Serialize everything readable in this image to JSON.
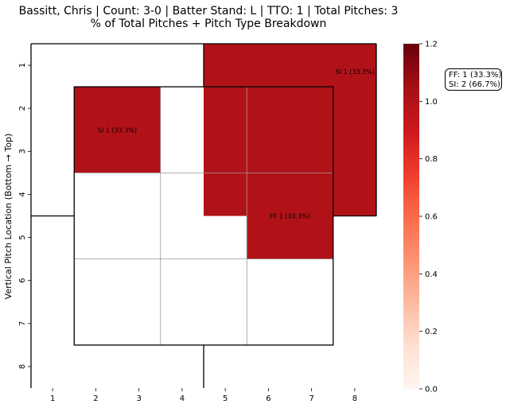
{
  "title": {
    "line1": "Bassitt, Chris | Count: 3-0 | Batter Stand: L | TTO: 1 | Total Pitches: 3",
    "line2": "% of Total Pitches + Pitch Type Breakdown"
  },
  "summary": [
    "FF: 1 (33.3%)",
    "SI: 2 (66.7%)"
  ],
  "chart_data": {
    "type": "heatmap",
    "ylabel": "Vertical Pitch Location (Bottom → Top)",
    "x_ticks": [
      "1",
      "2",
      "3",
      "4",
      "5",
      "6",
      "7",
      "8"
    ],
    "y_ticks": [
      "1",
      "2",
      "3",
      "4",
      "5",
      "6",
      "7",
      "8"
    ],
    "colorbar": {
      "min": 0.0,
      "max": 1.2,
      "ticks": [
        "0.0",
        "0.2",
        "0.4",
        "0.6",
        "0.8",
        "1.0",
        "1.2"
      ],
      "colormap": "Reds"
    },
    "cells": [
      {
        "zone": "top-right outer",
        "x_range": [
          4.5,
          8.5
        ],
        "y_range": [
          0.5,
          4.5
        ],
        "value": 1,
        "label": "SI 1 (33.3%)"
      },
      {
        "zone": "inner top-left",
        "x_range": [
          1.5,
          3.5
        ],
        "y_range": [
          1.5,
          3.5
        ],
        "value": 1,
        "label": "SI 1 (33.3%)"
      },
      {
        "zone": "inner middle-right",
        "x_range": [
          5.5,
          7.5
        ],
        "y_range": [
          3.5,
          5.5
        ],
        "value": 1,
        "label": "FF 1 (33.3%)"
      }
    ],
    "colors": {
      "filled": "#b11218",
      "empty": "#ffffff",
      "grid": "#999999"
    }
  }
}
